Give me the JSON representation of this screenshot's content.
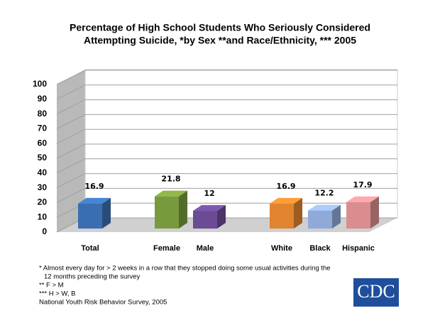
{
  "chart_data": {
    "type": "bar3d",
    "title": [
      "Percentage of High School Students Who Seriously Considered",
      "Attempting Suicide, *by Sex **and Race/Ethnicity, *** 2005"
    ],
    "categories": [
      "Total",
      null,
      "Female",
      "Male",
      null,
      "White",
      "Black",
      "Hispanic"
    ],
    "values": [
      16.9,
      null,
      21.8,
      12,
      null,
      16.9,
      12.2,
      17.9
    ],
    "colors": [
      "#3b6eb0",
      null,
      "#789a3c",
      "#6a4b94",
      null,
      "#e0842f",
      "#8fa9d9",
      "#d98d8f"
    ],
    "ylim": [
      0,
      100
    ],
    "yticks": [
      0,
      10,
      20,
      30,
      40,
      50,
      60,
      70,
      80,
      90,
      100
    ],
    "grid": true,
    "notes": [
      "* Almost every day for > 2 weeks in a row that they stopped doing some usual activities during the",
      "12 months preceding the survey",
      "** F > M",
      "*** H > W, B",
      "National Youth Risk Behavior Survey, 2005"
    ],
    "logo": "CDC"
  }
}
